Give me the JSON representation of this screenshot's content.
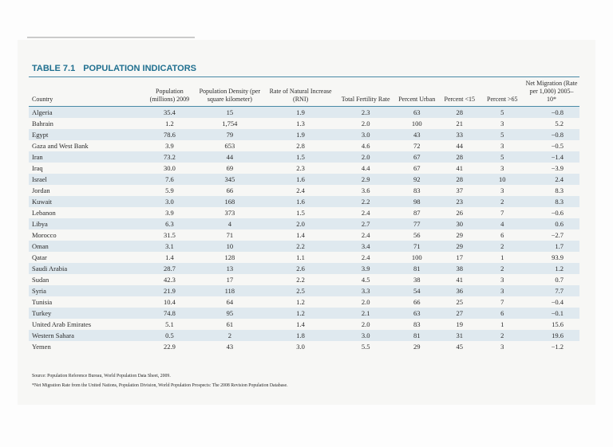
{
  "header": {
    "label": "TABLE 7.1",
    "title": "POPULATION INDICATORS"
  },
  "table": {
    "columns": [
      "Country",
      "Population (millions) 2009",
      "Population Density (per square kilometer)",
      "Rate of Natural Increase (RNI)",
      "Total Fertility Rate",
      "Percent Urban",
      "Percent <15",
      "Percent >65",
      "Net Migration (Rate per 1,000) 2005–10*"
    ],
    "rows": [
      [
        "Algeria",
        "35.4",
        "15",
        "1.9",
        "2.3",
        "63",
        "28",
        "5",
        "−0.8"
      ],
      [
        "Bahrain",
        "1.2",
        "1,754",
        "1.3",
        "2.0",
        "100",
        "21",
        "3",
        "5.2"
      ],
      [
        "Egypt",
        "78.6",
        "79",
        "1.9",
        "3.0",
        "43",
        "33",
        "5",
        "−0.8"
      ],
      [
        "Gaza and West Bank",
        "3.9",
        "653",
        "2.8",
        "4.6",
        "72",
        "44",
        "3",
        "−0.5"
      ],
      [
        "Iran",
        "73.2",
        "44",
        "1.5",
        "2.0",
        "67",
        "28",
        "5",
        "−1.4"
      ],
      [
        "Iraq",
        "30.0",
        "69",
        "2.3",
        "4.4",
        "67",
        "41",
        "3",
        "−3.9"
      ],
      [
        "Israel",
        "7.6",
        "345",
        "1.6",
        "2.9",
        "92",
        "28",
        "10",
        "2.4"
      ],
      [
        "Jordan",
        "5.9",
        "66",
        "2.4",
        "3.6",
        "83",
        "37",
        "3",
        "8.3"
      ],
      [
        "Kuwait",
        "3.0",
        "168",
        "1.6",
        "2.2",
        "98",
        "23",
        "2",
        "8.3"
      ],
      [
        "Lebanon",
        "3.9",
        "373",
        "1.5",
        "2.4",
        "87",
        "26",
        "7",
        "−0.6"
      ],
      [
        "Libya",
        "6.3",
        "4",
        "2.0",
        "2.7",
        "77",
        "30",
        "4",
        "0.6"
      ],
      [
        "Morocco",
        "31.5",
        "71",
        "1.4",
        "2.4",
        "56",
        "29",
        "6",
        "−2.7"
      ],
      [
        "Oman",
        "3.1",
        "10",
        "2.2",
        "3.4",
        "71",
        "29",
        "2",
        "1.7"
      ],
      [
        "Qatar",
        "1.4",
        "128",
        "1.1",
        "2.4",
        "100",
        "17",
        "1",
        "93.9"
      ],
      [
        "Saudi Arabia",
        "28.7",
        "13",
        "2.6",
        "3.9",
        "81",
        "38",
        "2",
        "1.2"
      ],
      [
        "Sudan",
        "42.3",
        "17",
        "2.2",
        "4.5",
        "38",
        "41",
        "3",
        "0.7"
      ],
      [
        "Syria",
        "21.9",
        "118",
        "2.5",
        "3.3",
        "54",
        "36",
        "3",
        "7.7"
      ],
      [
        "Tunisia",
        "10.4",
        "64",
        "1.2",
        "2.0",
        "66",
        "25",
        "7",
        "−0.4"
      ],
      [
        "Turkey",
        "74.8",
        "95",
        "1.2",
        "2.1",
        "63",
        "27",
        "6",
        "−0.1"
      ],
      [
        "United Arab Emirates",
        "5.1",
        "61",
        "1.4",
        "2.0",
        "83",
        "19",
        "1",
        "15.6"
      ],
      [
        "Western Sahara",
        "0.5",
        "2",
        "1.8",
        "3.0",
        "81",
        "31",
        "2",
        "19.6"
      ],
      [
        "Yemen",
        "22.9",
        "43",
        "3.0",
        "5.5",
        "29",
        "45",
        "3",
        "−1.2"
      ]
    ]
  },
  "notes": [
    "Source: Population Reference Bureau, World Population Data Sheet, 2009.",
    "*Net Migration Rate from the United Nations, Population Division, World Population Prospects: The 2008 Revision Population Database."
  ]
}
